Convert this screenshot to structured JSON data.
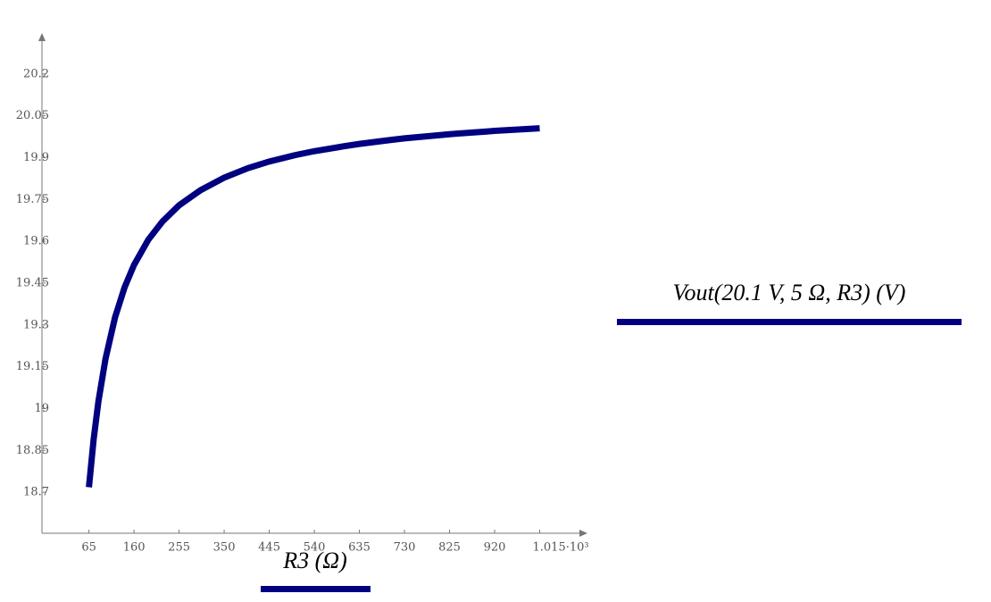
{
  "chart_data": {
    "type": "line",
    "x_label": "R3 (Ω)",
    "y_label": "Vout(20.1 V, 5 Ω, R3) (V)",
    "series": [
      {
        "color": "#000080",
        "x": [
          65,
          75,
          85,
          100,
          120,
          140,
          160,
          190,
          220,
          255,
          300,
          350,
          400,
          445,
          500,
          540,
          600,
          635,
          700,
          730,
          800,
          825,
          900,
          920,
          1015
        ],
        "values": [
          18.718,
          18.891,
          19.026,
          19.179,
          19.327,
          19.434,
          19.515,
          19.605,
          19.671,
          19.729,
          19.783,
          19.828,
          19.862,
          19.886,
          19.909,
          19.923,
          19.94,
          19.949,
          19.963,
          19.969,
          19.98,
          19.984,
          19.993,
          19.996,
          20.005
        ]
      }
    ],
    "xlim": [
      -34,
      1110
    ],
    "ylim": [
      18.553,
      20.337
    ],
    "xticks": [
      65,
      160,
      255,
      350,
      445,
      540,
      635,
      730,
      825,
      920,
      {
        "value": 1015,
        "label": "1.015·10³"
      }
    ],
    "yticks": [
      18.7,
      18.85,
      19,
      19.15,
      19.3,
      19.45,
      19.6,
      19.75,
      19.9,
      20.05,
      20.2
    ]
  }
}
